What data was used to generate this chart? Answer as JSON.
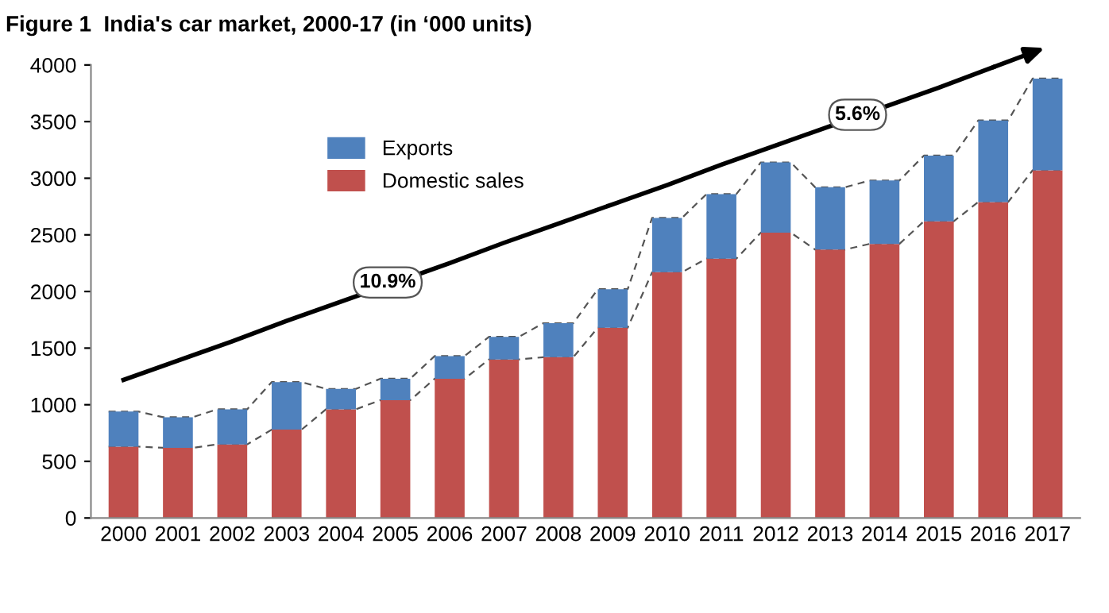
{
  "chart_data": {
    "type": "bar",
    "title": "Figure 1  India's car market, 2000-17 (in ‘000 units)",
    "categories": [
      "2000",
      "2001",
      "2002",
      "2003",
      "2004",
      "2005",
      "2006",
      "2007",
      "2008",
      "2009",
      "2010",
      "2011",
      "2012",
      "2013",
      "2014",
      "2015",
      "2016",
      "2017"
    ],
    "stacked": true,
    "series": [
      {
        "name": "Domestic sales",
        "color": "#c0504d",
        "values": [
          630,
          620,
          650,
          780,
          960,
          1040,
          1230,
          1400,
          1420,
          1680,
          2170,
          2290,
          2520,
          2370,
          2420,
          2620,
          2790,
          3070
        ]
      },
      {
        "name": "Exports",
        "color": "#4f81bd",
        "values": [
          310,
          270,
          310,
          420,
          180,
          190,
          200,
          200,
          300,
          340,
          480,
          570,
          620,
          550,
          560,
          580,
          720,
          810
        ]
      },
      {
        "type": "line",
        "color": "#000000",
        "values": [
          1220,
          1390,
          1560,
          1740,
          1910,
          2080,
          2250,
          2430,
          2600,
          2770,
          2940,
          3120,
          3290,
          3460,
          3630,
          3800,
          3980,
          null
        ]
      }
    ],
    "ylim": [
      0,
      4000
    ],
    "yticks": [
      0,
      500,
      1000,
      1500,
      2000,
      2500,
      3000,
      3500,
      4000
    ],
    "grid": false,
    "legend": "top left",
    "annotations": [
      "10.9%",
      "5.6%"
    ]
  }
}
